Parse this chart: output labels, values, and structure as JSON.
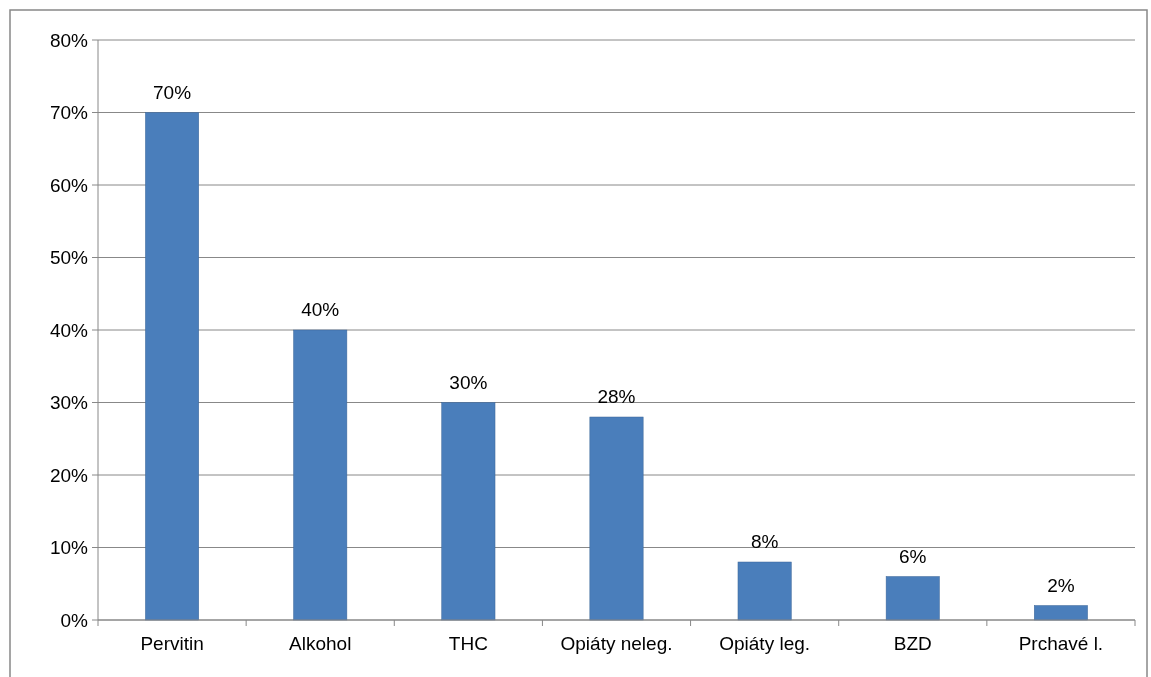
{
  "chart_data": {
    "type": "bar",
    "categories": [
      "Pervitin",
      "Alkohol",
      "THC",
      "Opiáty neleg.",
      "Opiáty leg.",
      "BZD",
      "Prchavé l."
    ],
    "values": [
      70,
      40,
      30,
      28,
      8,
      6,
      2
    ],
    "color": "#4a7ebb",
    "value_labels": [
      "70%",
      "40%",
      "30%",
      "28%",
      "8%",
      "6%",
      "2%"
    ],
    "ylim": [
      0,
      80
    ],
    "yticks": [
      {
        "value": 0,
        "label": "0%"
      },
      {
        "value": 10,
        "label": "10%"
      },
      {
        "value": 20,
        "label": "20%"
      },
      {
        "value": 30,
        "label": "30%"
      },
      {
        "value": 40,
        "label": "40%"
      },
      {
        "value": 50,
        "label": "50%"
      },
      {
        "value": 60,
        "label": "60%"
      },
      {
        "value": 70,
        "label": "70%"
      },
      {
        "value": 80,
        "label": "80%"
      }
    ],
    "grid": "y"
  }
}
